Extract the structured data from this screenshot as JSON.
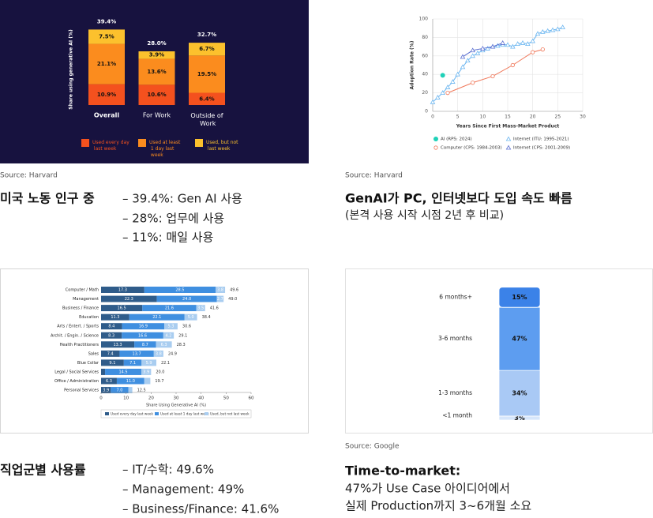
{
  "panels": [
    {
      "source": "Source: Harvard",
      "heading": "미국 노동 인구 중",
      "lines": [
        "– 39.4%: Gen AI 사용",
        "– 28%: 업무에 사용",
        "– 11%: 매일 사용"
      ]
    },
    {
      "source": "Source: Harvard",
      "heading": "GenAI가 PC, 인터넷보다 도입 속도 빠름",
      "lines": [
        "(본격 사용 시작 시점 2년 후 비교)"
      ]
    },
    {
      "heading": "직업군별 사용률",
      "lines": [
        "– IT/수학: 49.6%",
        "– Management: 49%",
        "– Business/Finance: 41.6%"
      ]
    },
    {
      "source": "Source: Google",
      "heading": "Time-to-market:",
      "lines": [
        "47%가 Use Case 아이디어에서",
        "실제 Production까지 3~6개월 소요"
      ]
    }
  ],
  "chart_data": [
    {
      "type": "stacked_column_dark",
      "background": "#17123f",
      "ylabel": "Share using generative AI (%)",
      "categories": [
        "Overall",
        "For Work",
        "Outside of Work"
      ],
      "series": [
        {
          "name": "Used every day last week",
          "color": "#f4511e",
          "values": [
            10.9,
            10.6,
            6.4
          ],
          "value_labels": [
            "10.9%",
            "10.6%",
            "6.4%"
          ]
        },
        {
          "name": "Used at least 1 day last week",
          "color": "#fb8c1e",
          "values": [
            21.1,
            13.6,
            19.5
          ],
          "value_labels": [
            "21.1%",
            "13.6%",
            "19.5%"
          ]
        },
        {
          "name": "Used, but not last week",
          "color": "#fcc12d",
          "values": [
            7.5,
            3.9,
            6.7
          ],
          "value_labels": [
            "7.5%",
            "3.9%",
            "6.7%"
          ]
        }
      ],
      "totals": [
        39.4,
        28,
        32.7
      ],
      "total_labels": [
        "39.4%",
        "28.0%",
        "32.7%"
      ]
    },
    {
      "type": "line",
      "xlabel": "Years Since First Mass-Market Product",
      "ylabel": "Adoption Rate (%)",
      "xlim": [
        0,
        30
      ],
      "xticks": [
        0,
        5,
        10,
        15,
        20,
        25,
        30
      ],
      "ylim": [
        0,
        100
      ],
      "yticks": [
        0,
        20,
        40,
        60,
        80,
        100
      ],
      "grid": true,
      "series": [
        {
          "name": "AI (RPS: 2024)",
          "color": "#1fd1b8",
          "marker": "filled-circle",
          "x": [
            2
          ],
          "values": [
            39
          ]
        },
        {
          "name": "Internet (ITU: 1995-2021)",
          "color": "#6cb6f0",
          "marker": "open-triangle",
          "x": [
            0,
            1,
            2,
            3,
            4,
            5,
            6,
            7,
            8,
            9,
            10,
            11,
            12,
            13,
            14,
            15,
            16,
            17,
            18,
            19,
            20,
            21,
            22,
            23,
            24,
            25,
            26
          ],
          "values": [
            10,
            15,
            20,
            26,
            32,
            40,
            48,
            55,
            60,
            63,
            66,
            68,
            70,
            71,
            72,
            72,
            70,
            73,
            74,
            73,
            76,
            84,
            86,
            87,
            88,
            89,
            91
          ]
        },
        {
          "name": "Computer (CPS: 1984-2003)",
          "color": "#f0785a",
          "marker": "open-circle",
          "x": [
            3,
            8,
            12,
            16,
            20,
            22
          ],
          "values": [
            20,
            31,
            38,
            50,
            64,
            67
          ]
        },
        {
          "name": "Internet (CPS: 2001-2009)",
          "color": "#5a6fd0",
          "marker": "open-triangle",
          "x": [
            6,
            8,
            10,
            12,
            14
          ],
          "values": [
            59,
            66,
            68,
            70,
            74
          ]
        }
      ]
    },
    {
      "type": "hbar_stacked",
      "xlabel": "Share Using Generative AI (%)",
      "xlim": [
        0,
        60
      ],
      "xticks": [
        0,
        10,
        20,
        30,
        40,
        50,
        60
      ],
      "categories": [
        "Computer / Math",
        "Management",
        "Business / Finance",
        "Education",
        "Arts / Entert. / Sports",
        "Archit. / Engin. / Science",
        "Health Practitioners",
        "Sales",
        "Blue Collar",
        "Legal / Social Services",
        "Office / Administration",
        "Personal Services"
      ],
      "series": [
        {
          "name": "Used every day last week",
          "color": "#2f5c8a",
          "values": [
            17.3,
            22.3,
            16.5,
            11.3,
            8.4,
            8.3,
            13.3,
            7.4,
            9.1,
            1.6,
            6.3,
            3.9
          ],
          "value_labels": [
            "17.3",
            "22.3",
            "16.5",
            "11.3",
            "8.4",
            "8.3",
            "13.3",
            "7.4",
            "9.1",
            null,
            "6.3",
            "3.9"
          ]
        },
        {
          "name": "Used at least 1 day last week",
          "color": "#3f8fe0",
          "values": [
            28.5,
            24,
            21.6,
            22.1,
            16.9,
            16.6,
            8.7,
            13.7,
            7.1,
            14.5,
            11,
            7
          ],
          "value_labels": [
            "28.5",
            "24.0",
            "21.6",
            "22.1",
            "16.9",
            "16.6",
            "8.7",
            "13.7",
            "7.1",
            "14.5",
            "11.0",
            "7.0"
          ]
        },
        {
          "name": "Used, but not last week",
          "color": "#a9cdf0",
          "values": [
            3.8,
            2.7,
            3.5,
            5,
            5.3,
            4.2,
            6.3,
            3.8,
            5.9,
            3.9,
            2.4,
            1.6
          ],
          "value_labels": [
            "3.8",
            "2.7",
            "3.5",
            "5.0",
            "5.3",
            "4.2",
            "6.3",
            "3.8",
            "5.9",
            "3.9",
            null,
            null
          ]
        }
      ],
      "totals": [
        49.6,
        49,
        41.6,
        38.4,
        30.6,
        29.1,
        28.3,
        24.9,
        22.1,
        20,
        19.7,
        12.5
      ],
      "total_labels": [
        "49.6",
        "49.0",
        "41.6",
        "38.4",
        "30.6",
        "29.1",
        "28.3",
        "24.9",
        "22.1",
        "20.0",
        "19.7",
        "12.5"
      ]
    },
    {
      "type": "stacked_single",
      "categories": [
        "<1 month",
        "1-3 months",
        "3-6 months",
        "6 months+"
      ],
      "values": [
        3,
        34,
        47,
        15
      ],
      "value_labels": [
        "3%",
        "34%",
        "47%",
        "15%"
      ],
      "colors": [
        "#d6e6fb",
        "#a9c9f5",
        "#5d9df0",
        "#3b82e8"
      ]
    }
  ]
}
